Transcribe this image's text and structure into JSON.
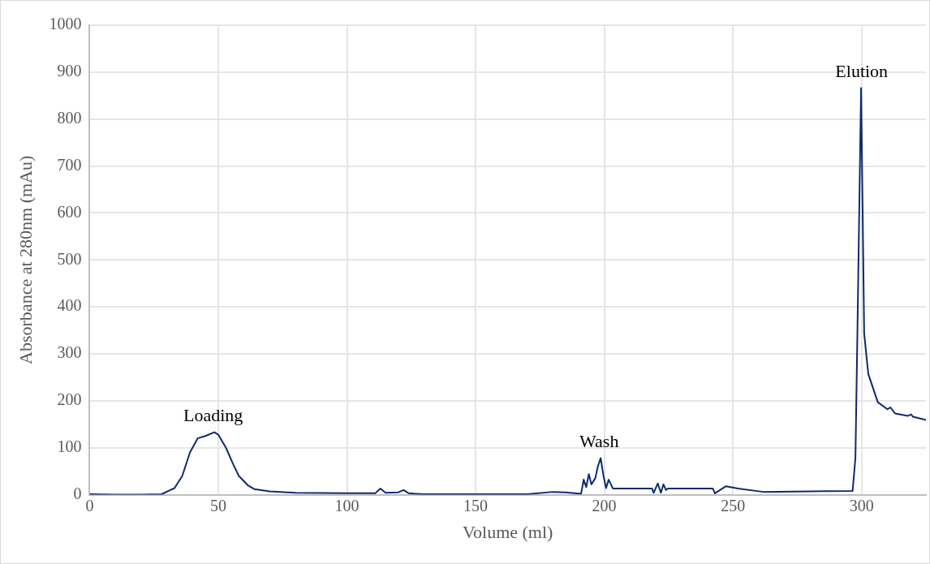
{
  "chart_data": {
    "type": "line",
    "xlabel": "Volume (ml)",
    "ylabel": "Absorbance at 280nm (mAu)",
    "xlim": [
      0,
      325
    ],
    "xticks": [
      0,
      50,
      100,
      150,
      200,
      250,
      300
    ],
    "ylim": [
      0,
      1000
    ],
    "yticks": [
      0,
      100,
      200,
      300,
      400,
      500,
      600,
      700,
      800,
      900,
      1000
    ],
    "grid": true,
    "legend": false,
    "marker": "none",
    "line_style": "solid",
    "annotations": [
      {
        "text": "Loading",
        "x": 48,
        "y": 133
      },
      {
        "text": "Wash",
        "x": 198,
        "y": 78
      },
      {
        "text": "Elution",
        "x": 300,
        "y": 866
      }
    ],
    "series": [
      {
        "color": "#0d2a6b",
        "x": [
          0,
          10,
          20,
          28,
          31,
          33,
          36,
          39,
          42,
          45,
          48.5,
          50,
          53,
          55.7,
          58,
          61.5,
          64,
          70,
          80,
          100,
          111,
          113,
          115,
          120,
          122,
          124,
          130,
          170,
          180,
          185,
          191,
          192,
          193,
          194,
          195,
          196.5,
          197.5,
          198.6,
          199.7,
          200.7,
          201.7,
          203.4,
          218.6,
          219.2,
          220.8,
          222,
          223,
          224,
          224.7,
          242.2,
          243,
          247.3,
          252,
          261.8,
          296.5,
          297.6,
          298.4,
          299.8,
          301,
          302.6,
          306.3,
          310,
          311.2,
          313,
          318,
          319.2,
          320,
          325
        ],
        "values": [
          1,
          0,
          0,
          1,
          9,
          14,
          40,
          90,
          120,
          125,
          133,
          128,
          100,
          66,
          40,
          20,
          12,
          7,
          4,
          3,
          3,
          13,
          4,
          5,
          10,
          3,
          1,
          1,
          6,
          5,
          2,
          32,
          16,
          44,
          22,
          35,
          60,
          78,
          40,
          14,
          32,
          13,
          13,
          4,
          24,
          4,
          22,
          10,
          13,
          13,
          3,
          18,
          13,
          6,
          8,
          78,
          356,
          866,
          343,
          257,
          197,
          182,
          186,
          173,
          168,
          171,
          166,
          159
        ]
      }
    ]
  }
}
